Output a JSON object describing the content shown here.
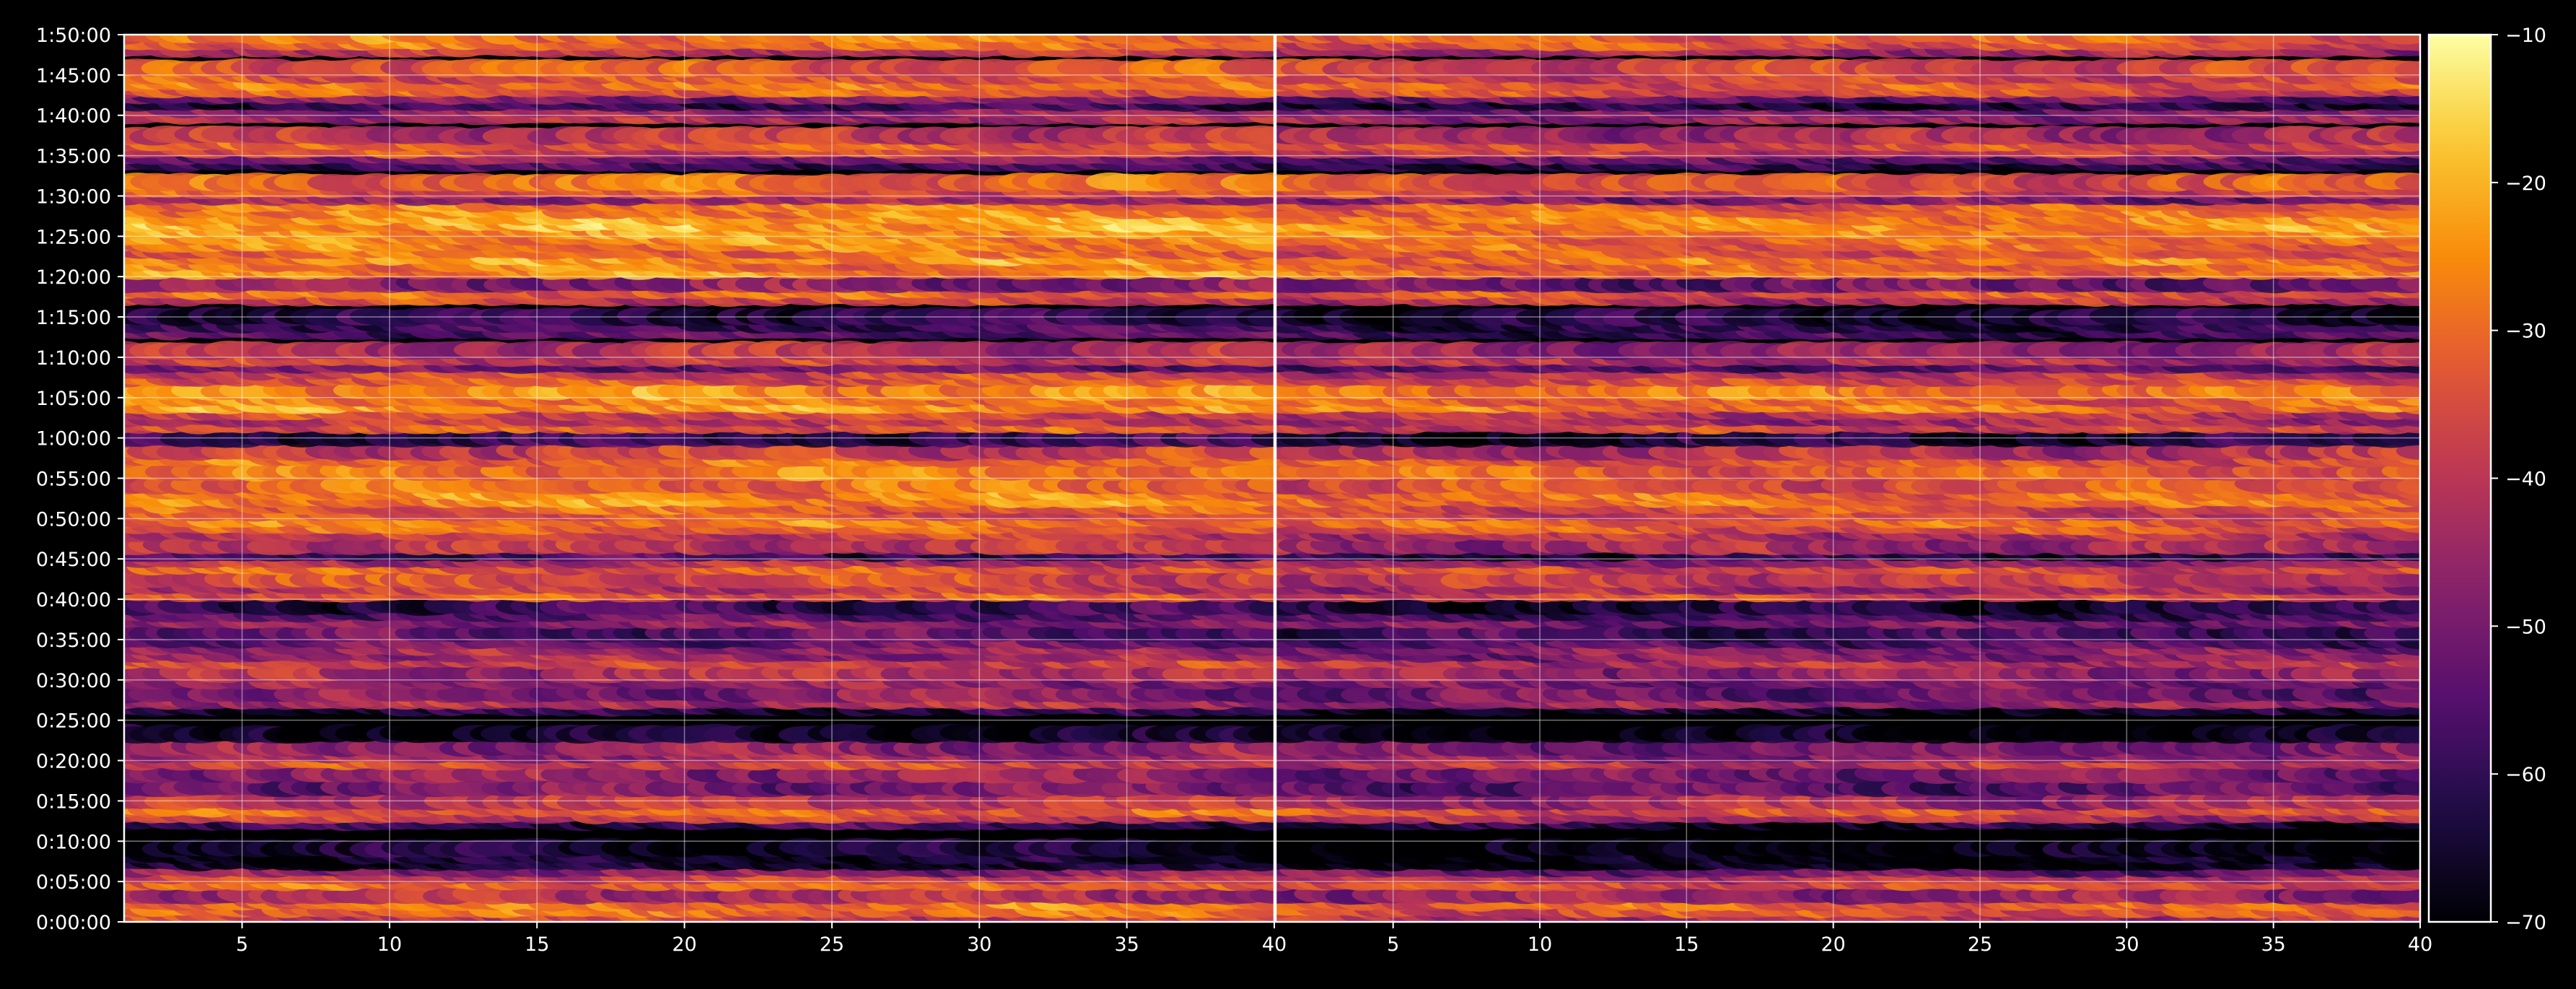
{
  "chart_data": {
    "type": "heatmap",
    "colormap": "inferno",
    "background": "#000000",
    "grid": true,
    "panels": [
      {
        "name": "left",
        "xlim": [
          1,
          40
        ],
        "x_ticks": [
          5,
          10,
          15,
          20,
          25,
          30,
          35,
          40
        ],
        "x_tick_labels": [
          "5",
          "10",
          "15",
          "20",
          "25",
          "30",
          "35",
          "40"
        ]
      },
      {
        "name": "right",
        "xlim": [
          1,
          40
        ],
        "x_ticks": [
          5,
          10,
          15,
          20,
          25,
          30,
          35,
          40
        ],
        "x_tick_labels": [
          "5",
          "10",
          "15",
          "20",
          "25",
          "30",
          "35",
          "40"
        ]
      }
    ],
    "y_axis": {
      "unit": "seconds",
      "ylim_seconds": [
        0,
        6600
      ],
      "ticks_seconds": [
        0,
        300,
        600,
        900,
        1200,
        1500,
        1800,
        2100,
        2400,
        2700,
        3000,
        3300,
        3600,
        3900,
        4200,
        4500,
        4800,
        5100,
        5400,
        5700,
        6000,
        6300,
        6600
      ],
      "tick_labels": [
        "0:00:00",
        "0:05:00",
        "0:10:00",
        "0:15:00",
        "0:20:00",
        "0:25:00",
        "0:30:00",
        "0:35:00",
        "0:40:00",
        "0:45:00",
        "0:50:00",
        "0:55:00",
        "1:00:00",
        "1:05:00",
        "1:10:00",
        "1:15:00",
        "1:20:00",
        "1:25:00",
        "1:30:00",
        "1:35:00",
        "1:40:00",
        "1:45:00",
        "1:50:00"
      ]
    },
    "colorbar": {
      "range": [
        -70,
        -10
      ],
      "ticks": [
        -10,
        -20,
        -30,
        -40,
        -50,
        -60,
        -70
      ],
      "tick_labels": [
        "−10",
        "−20",
        "−30",
        "−40",
        "−50",
        "−60",
        "−70"
      ]
    },
    "row_times_seconds": [
      20,
      60,
      100,
      150,
      200,
      300,
      350,
      400,
      450,
      500,
      550,
      750,
      800,
      850,
      900,
      1000,
      1100,
      1200,
      1250,
      1300,
      1400,
      1600,
      1650,
      1700,
      1800,
      1850,
      1950,
      2000,
      2050,
      2100,
      2150,
      2250,
      2300,
      2350,
      2450,
      2500,
      2550,
      2650,
      2700,
      2750,
      2800,
      2900,
      2950,
      3000,
      3050,
      3100,
      3150,
      3200,
      3250,
      3350,
      3450,
      3500,
      3600,
      3700,
      3750,
      3800,
      3850,
      3900,
      3950,
      4050,
      4100,
      4150,
      4200,
      4250,
      4400,
      4450,
      4500,
      4650,
      4700,
      4750,
      4850,
      4900,
      4950,
      5000,
      5050,
      5100,
      5150,
      5200,
      5250,
      5300,
      5350,
      5400,
      5450,
      5500,
      5650,
      5700,
      5750,
      5800,
      5850,
      6000,
      6050,
      6100,
      6150,
      6200,
      6250,
      6300,
      6350,
      6500,
      6550,
      6600
    ],
    "row_levels_db": [
      -33,
      -38,
      -30,
      -28,
      -42,
      -30,
      -38,
      -48,
      -66,
      -66,
      -66,
      -60,
      -38,
      -30,
      -40,
      -50,
      -46,
      -36,
      -44,
      -47,
      -66,
      -62,
      -42,
      -48,
      -47,
      -43,
      -37,
      -45,
      -44,
      -52,
      -54,
      -47,
      -55,
      -60,
      -32,
      -40,
      -35,
      -32,
      -42,
      -58,
      -40,
      -38,
      -30,
      -28,
      -34,
      -32,
      -25,
      -26,
      -30,
      -28,
      -30,
      -38,
      -60,
      -33,
      -40,
      -36,
      -24,
      -28,
      -25,
      -33,
      -36,
      -52,
      -38,
      -42,
      -55,
      -58,
      -60,
      -37,
      -30,
      -48,
      -25,
      -28,
      -24,
      -30,
      -27,
      -26,
      -24,
      -21,
      -22,
      -26,
      -28,
      -46,
      -34,
      -30,
      -58,
      -50,
      -36,
      -32,
      -40,
      -43,
      -46,
      -60,
      -48,
      -32,
      -29,
      -34,
      -33,
      -40,
      -30,
      -28
    ]
  }
}
